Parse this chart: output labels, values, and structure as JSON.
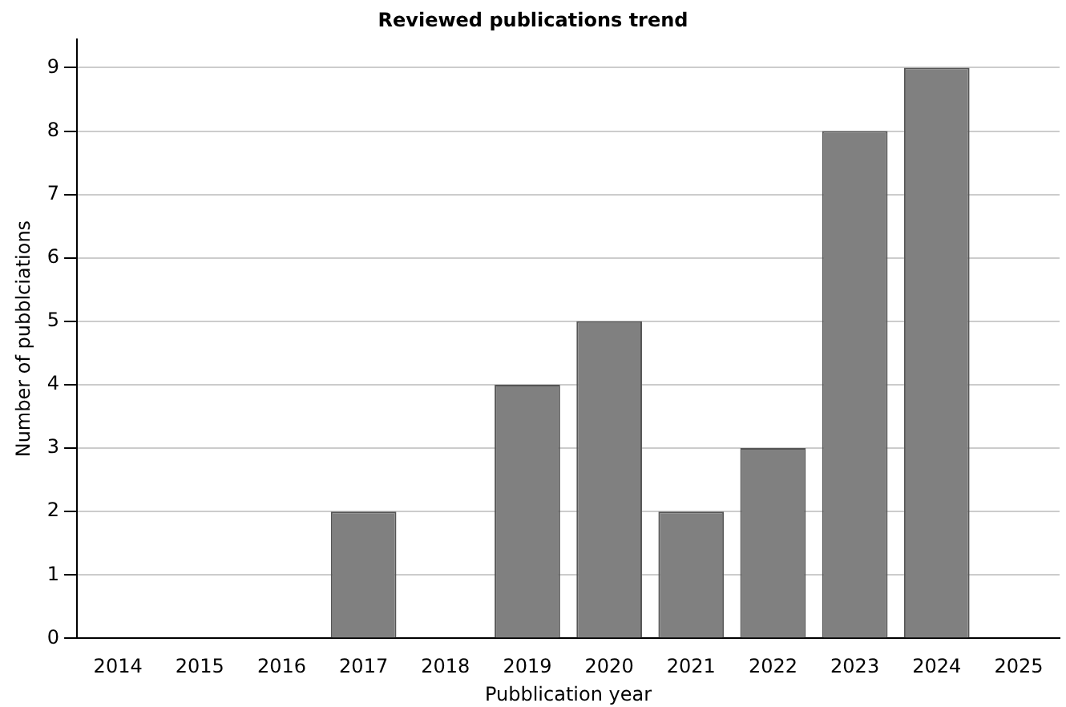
{
  "chart_data": {
    "type": "bar",
    "title": "Reviewed publications trend",
    "xlabel": "Pubblication year",
    "ylabel": "Number of pubblciations",
    "categories": [
      "2014",
      "2015",
      "2016",
      "2017",
      "2018",
      "2019",
      "2020",
      "2021",
      "2022",
      "2023",
      "2024",
      "2025"
    ],
    "values": [
      0,
      0,
      0,
      2,
      0,
      4,
      5,
      2,
      3,
      8,
      9,
      0
    ],
    "color": "#808080",
    "ylim": [
      0,
      9.45
    ],
    "yticks": [
      0,
      1,
      2,
      3,
      4,
      5,
      6,
      7,
      8,
      9
    ],
    "grid": "y",
    "legend": false
  }
}
